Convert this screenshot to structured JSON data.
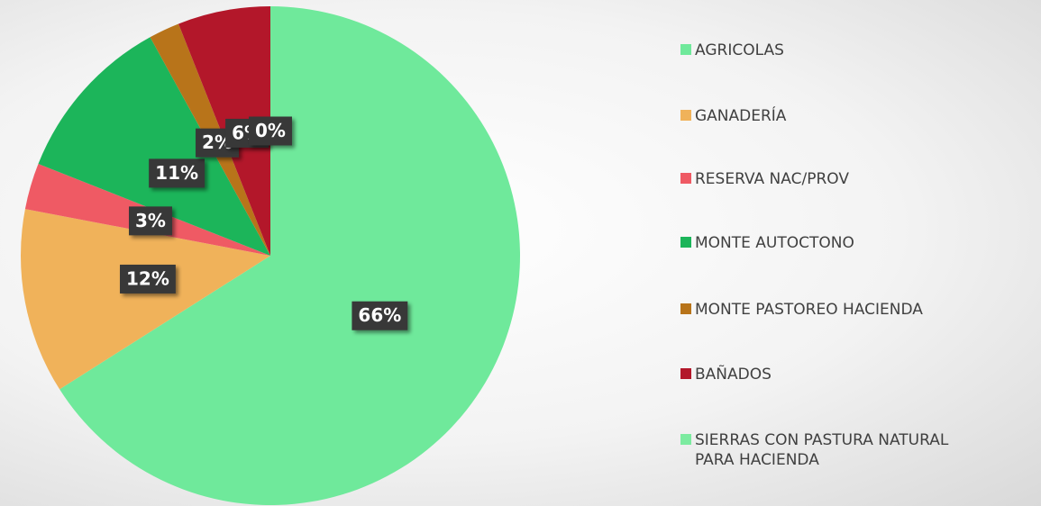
{
  "chart_data": {
    "type": "pie",
    "categories": [
      "AGRICOLAS",
      "GANADERÍA",
      "RESERVA NAC/PROV",
      "MONTE AUTOCTONO",
      "MONTE PASTOREO HACIENDA",
      "BAÑADOS",
      "SIERRAS CON PASTURA NATURAL PARA HACIENDA"
    ],
    "values": [
      66,
      12,
      3,
      11,
      2,
      6,
      0
    ],
    "value_labels": [
      "66%",
      "12%",
      "3%",
      "11%",
      "2%",
      "6%",
      "0%"
    ],
    "colors": [
      "#6fe99b",
      "#f0b25a",
      "#ef5a64",
      "#1cb55a",
      "#b8741a",
      "#b3172a",
      "#7ceba0"
    ],
    "legend": "right"
  }
}
